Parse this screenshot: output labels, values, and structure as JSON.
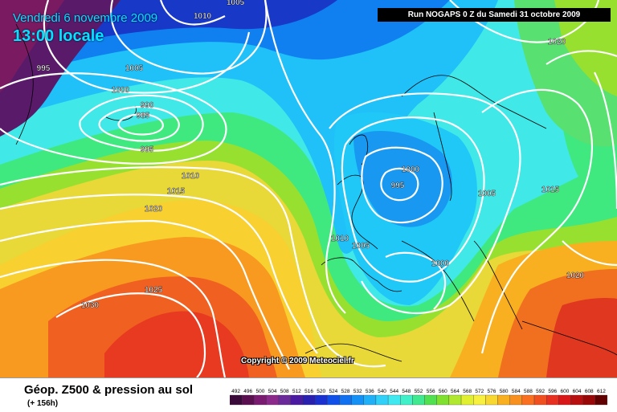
{
  "header": {
    "date": "Vendredi 6 novembre 2009",
    "time": "13:00 locale",
    "run": "Run NOGAPS 0 Z du Samedi 31 octobre 2009"
  },
  "copyright": "Copyright © 2009 Meteociel.fr",
  "footer": {
    "title": "Géop. Z500 & pression au sol",
    "subtitle": "(+ 156h)"
  },
  "legend": {
    "values": [
      "492",
      "496",
      "500",
      "504",
      "508",
      "512",
      "516",
      "520",
      "524",
      "528",
      "532",
      "536",
      "540",
      "544",
      "548",
      "552",
      "556",
      "560",
      "564",
      "568",
      "572",
      "576",
      "580",
      "584",
      "588",
      "592",
      "596",
      "600",
      "604",
      "608",
      "612"
    ],
    "colors": [
      "#3a0a3a",
      "#5a1050",
      "#7a1a70",
      "#8c2a8c",
      "#6a2a9a",
      "#4a1aa0",
      "#2a20b0",
      "#1a30d0",
      "#1050e8",
      "#1070f0",
      "#1590f5",
      "#20b0f8",
      "#30d0f8",
      "#40e8f0",
      "#40f0c8",
      "#40e890",
      "#50e050",
      "#80e030",
      "#b0e830",
      "#e0f030",
      "#f8f040",
      "#f8d830",
      "#f8b020",
      "#f89020",
      "#f87020",
      "#f05020",
      "#e83020",
      "#d81818",
      "#b81010",
      "#980808",
      "#600000"
    ]
  },
  "isobars": [
    {
      "value": "1010"
    },
    {
      "value": "1005"
    },
    {
      "value": "995"
    },
    {
      "value": "1005"
    },
    {
      "value": "1000"
    },
    {
      "value": "990"
    },
    {
      "value": "985"
    },
    {
      "value": "995"
    },
    {
      "value": "1010"
    },
    {
      "value": "1015"
    },
    {
      "value": "1020"
    },
    {
      "value": "1025"
    },
    {
      "value": "1030"
    },
    {
      "value": "1000"
    },
    {
      "value": "995"
    },
    {
      "value": "1010"
    },
    {
      "value": "1005"
    },
    {
      "value": "1005"
    },
    {
      "value": "1015"
    },
    {
      "value": "1000"
    },
    {
      "value": "1020"
    },
    {
      "value": "1020"
    }
  ]
}
